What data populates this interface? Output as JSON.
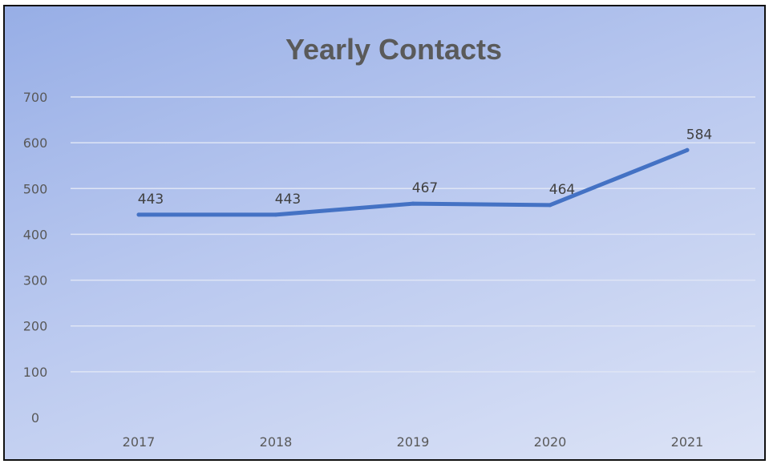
{
  "chart_data": {
    "type": "line",
    "title": "Yearly Contacts",
    "xlabel": "",
    "ylabel": "",
    "categories": [
      "2017",
      "2018",
      "2019",
      "2020",
      "2021"
    ],
    "series": [
      {
        "values": [
          443,
          443,
          467,
          464,
          584
        ],
        "color": "#4472c4"
      }
    ],
    "data_labels": [
      "443",
      "443",
      "467",
      "464",
      "584"
    ],
    "ylim": [
      0,
      700
    ],
    "yticks": [
      "0",
      "100",
      "200",
      "300",
      "400",
      "500",
      "600",
      "700"
    ],
    "grid": true,
    "legend": "none"
  }
}
